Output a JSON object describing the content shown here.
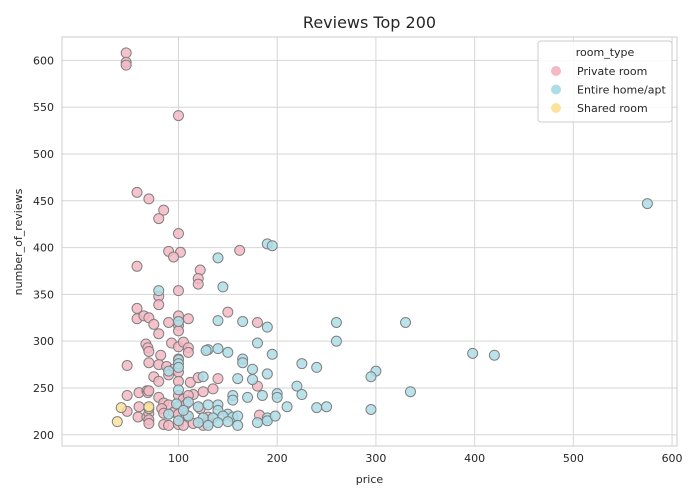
{
  "chart_data": {
    "type": "scatter",
    "title": "Reviews Top 200",
    "xlabel": "price",
    "ylabel": "number_of_reviews",
    "xlim": [
      -18,
      605
    ],
    "ylim": [
      188,
      625
    ],
    "xticks": [
      100,
      200,
      300,
      400,
      500,
      600
    ],
    "yticks": [
      200,
      250,
      300,
      350,
      400,
      450,
      500,
      550,
      600
    ],
    "grid": true,
    "legend": {
      "title": "room_type",
      "placement": "top-right"
    },
    "series": [
      {
        "name": "Private room",
        "color": "#f4b9c4",
        "points": [
          [
            47,
            608
          ],
          [
            47,
            598
          ],
          [
            47,
            595
          ],
          [
            100,
            541
          ],
          [
            58,
            459
          ],
          [
            70,
            452
          ],
          [
            85,
            440
          ],
          [
            80,
            431
          ],
          [
            100,
            415
          ],
          [
            162,
            397
          ],
          [
            90,
            396
          ],
          [
            102,
            395
          ],
          [
            95,
            390
          ],
          [
            58,
            380
          ],
          [
            122,
            376
          ],
          [
            120,
            367
          ],
          [
            120,
            361
          ],
          [
            80,
            348
          ],
          [
            100,
            354
          ],
          [
            80,
            339
          ],
          [
            58,
            335
          ],
          [
            150,
            331
          ],
          [
            58,
            324
          ],
          [
            65,
            327
          ],
          [
            70,
            325
          ],
          [
            100,
            327
          ],
          [
            110,
            324
          ],
          [
            75,
            318
          ],
          [
            90,
            320
          ],
          [
            100,
            317
          ],
          [
            100,
            311
          ],
          [
            180,
            320
          ],
          [
            80,
            308
          ],
          [
            67,
            297
          ],
          [
            69,
            293
          ],
          [
            70,
            289
          ],
          [
            93,
            298
          ],
          [
            100,
            294
          ],
          [
            105,
            299
          ],
          [
            110,
            293
          ],
          [
            110,
            288
          ],
          [
            82,
            285
          ],
          [
            100,
            281
          ],
          [
            48,
            274
          ],
          [
            70,
            277
          ],
          [
            80,
            275
          ],
          [
            88,
            273
          ],
          [
            95,
            270
          ],
          [
            90,
            264
          ],
          [
            100,
            267
          ],
          [
            75,
            262
          ],
          [
            80,
            257
          ],
          [
            100,
            257
          ],
          [
            112,
            256
          ],
          [
            120,
            261
          ],
          [
            140,
            260
          ],
          [
            135,
            249
          ],
          [
            125,
            246
          ],
          [
            115,
            243
          ],
          [
            180,
            252
          ],
          [
            60,
            245
          ],
          [
            48,
            242
          ],
          [
            68,
            247
          ],
          [
            69,
            245
          ],
          [
            70,
            247
          ],
          [
            80,
            240
          ],
          [
            100,
            242
          ],
          [
            105,
            238
          ],
          [
            110,
            242
          ],
          [
            85,
            234
          ],
          [
            90,
            232
          ],
          [
            100,
            230
          ],
          [
            108,
            233
          ],
          [
            122,
            228
          ],
          [
            83,
            228
          ],
          [
            60,
            230
          ],
          [
            48,
            225
          ],
          [
            59,
            219
          ],
          [
            68,
            219
          ],
          [
            70,
            223
          ],
          [
            70,
            216
          ],
          [
            85,
            223
          ],
          [
            95,
            224
          ],
          [
            100,
            222
          ],
          [
            108,
            221
          ],
          [
            130,
            219
          ],
          [
            70,
            212
          ],
          [
            85,
            211
          ],
          [
            90,
            210
          ],
          [
            100,
            211
          ],
          [
            105,
            210
          ],
          [
            115,
            212
          ],
          [
            125,
            210
          ],
          [
            130,
            213
          ],
          [
            182,
            221
          ]
        ]
      },
      {
        "name": "Entire home/apt",
        "color": "#addde8",
        "points": [
          [
            575,
            447
          ],
          [
            190,
            404
          ],
          [
            195,
            402
          ],
          [
            140,
            389
          ],
          [
            145,
            358
          ],
          [
            80,
            354
          ],
          [
            140,
            322
          ],
          [
            165,
            321
          ],
          [
            190,
            315
          ],
          [
            260,
            320
          ],
          [
            330,
            320
          ],
          [
            100,
            321
          ],
          [
            260,
            300
          ],
          [
            180,
            298
          ],
          [
            130,
            291
          ],
          [
            140,
            292
          ],
          [
            150,
            288
          ],
          [
            128,
            290
          ],
          [
            195,
            286
          ],
          [
            398,
            287
          ],
          [
            420,
            285
          ],
          [
            165,
            281
          ],
          [
            165,
            277
          ],
          [
            100,
            280
          ],
          [
            100,
            276
          ],
          [
            225,
            276
          ],
          [
            240,
            272
          ],
          [
            175,
            270
          ],
          [
            190,
            265
          ],
          [
            300,
            268
          ],
          [
            295,
            262
          ],
          [
            160,
            260
          ],
          [
            175,
            259
          ],
          [
            100,
            272
          ],
          [
            125,
            262
          ],
          [
            90,
            268
          ],
          [
            220,
            252
          ],
          [
            335,
            246
          ],
          [
            200,
            244
          ],
          [
            185,
            242
          ],
          [
            155,
            242
          ],
          [
            170,
            240
          ],
          [
            155,
            237
          ],
          [
            200,
            240
          ],
          [
            225,
            243
          ],
          [
            100,
            248
          ],
          [
            98,
            233
          ],
          [
            110,
            235
          ],
          [
            210,
            230
          ],
          [
            240,
            229
          ],
          [
            250,
            230
          ],
          [
            295,
            227
          ],
          [
            140,
            232
          ],
          [
            140,
            226
          ],
          [
            150,
            222
          ],
          [
            155,
            219
          ],
          [
            145,
            220
          ],
          [
            160,
            220
          ],
          [
            120,
            230
          ],
          [
            130,
            232
          ],
          [
            90,
            222
          ],
          [
            110,
            220
          ],
          [
            125,
            218
          ],
          [
            135,
            218
          ],
          [
            120,
            213
          ],
          [
            130,
            210
          ],
          [
            140,
            213
          ],
          [
            150,
            214
          ],
          [
            160,
            210
          ],
          [
            180,
            213
          ],
          [
            190,
            218
          ],
          [
            190,
            215
          ],
          [
            198,
            220
          ],
          [
            105,
            226
          ],
          [
            100,
            215
          ]
        ]
      },
      {
        "name": "Shared room",
        "color": "#fce39c",
        "points": [
          [
            38,
            214
          ],
          [
            42,
            229
          ],
          [
            70,
            228
          ],
          [
            70,
            230
          ]
        ]
      }
    ]
  }
}
